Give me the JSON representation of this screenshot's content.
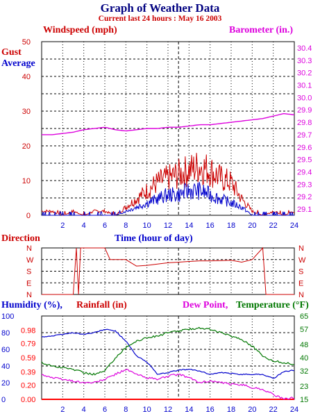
{
  "header": {
    "title": "Graph of Weather Data",
    "subtitle": "Current last 24 hours : May 16 2003"
  },
  "wind_panel": {
    "left_title": "Windspeed (mph)",
    "right_title": "Barometer (in.)",
    "legend_gust": "Gust",
    "legend_average": "Average",
    "x_title": "Time (hour of day)"
  },
  "direction_panel": {
    "title": "Direction",
    "compass": [
      "N",
      "W",
      "S",
      "E",
      "N"
    ]
  },
  "bottom_panel": {
    "humidity_label": "Humidity (%),",
    "rainfall_label": "Rainfall (in)",
    "dewpoint_label": "Dew Point,",
    "temperature_label": "Temperature (°F)"
  },
  "colors": {
    "gust": "#cc0000",
    "average": "#0000cc",
    "barometer": "#dd00dd",
    "direction": "#cc0000",
    "humidity": "#0000cc",
    "dewpoint": "#dd00dd",
    "temperature": "#007700",
    "rainfall": "#ff0000",
    "grid": "#000000"
  },
  "chart_data": [
    {
      "type": "line",
      "title": "Windspeed (mph) / Barometer (in.)",
      "x": [
        0,
        1,
        2,
        3,
        4,
        5,
        6,
        7,
        8,
        9,
        10,
        11,
        12,
        13,
        14,
        15,
        16,
        17,
        18,
        19,
        20,
        21,
        22,
        23,
        24
      ],
      "xticks": [
        2,
        4,
        6,
        8,
        10,
        12,
        14,
        16,
        18,
        20,
        22,
        24
      ],
      "xlim": [
        0,
        24
      ],
      "ylim": [
        0,
        50
      ],
      "yticks": [
        0,
        10,
        20,
        30,
        40,
        50
      ],
      "y2lim": [
        29.05,
        30.45
      ],
      "y2ticks": [
        29.1,
        29.2,
        29.3,
        29.4,
        29.5,
        29.6,
        29.7,
        29.8,
        29.9,
        30.0,
        30.1,
        30.2,
        30.3,
        30.4
      ],
      "series": [
        {
          "name": "Gust",
          "axis": "left",
          "values": [
            1,
            1,
            0,
            1,
            0,
            1,
            1,
            0,
            2,
            4,
            6,
            8,
            9,
            10,
            11,
            12,
            11,
            9,
            8,
            4,
            1,
            0,
            1,
            0,
            1
          ]
        },
        {
          "name": "Average",
          "axis": "left",
          "values": [
            0,
            0,
            0,
            0,
            0,
            0,
            0,
            0,
            1,
            2,
            3,
            4,
            5,
            5,
            6,
            6,
            5,
            4,
            3,
            2,
            0,
            0,
            0,
            0,
            0
          ]
        },
        {
          "name": "Barometer",
          "axis": "right",
          "values": [
            29.7,
            29.7,
            29.71,
            29.72,
            29.74,
            29.75,
            29.76,
            29.74,
            29.73,
            29.74,
            29.75,
            29.75,
            29.76,
            29.76,
            29.77,
            29.78,
            29.78,
            29.79,
            29.8,
            29.81,
            29.82,
            29.83,
            29.85,
            29.87,
            29.86
          ]
        }
      ]
    },
    {
      "type": "line",
      "title": "Direction",
      "x": [
        0,
        1,
        2,
        3,
        3.3,
        3.5,
        3.7,
        4,
        5,
        6,
        6.5,
        7,
        8,
        9,
        10,
        11,
        12,
        13,
        14,
        15,
        16,
        17,
        18,
        19,
        20,
        21,
        21.3,
        22,
        23,
        23.5,
        24
      ],
      "yticks": [
        "N",
        "W",
        "S",
        "E",
        "N"
      ],
      "ylim": [
        0,
        360
      ],
      "series": [
        {
          "name": "Direction",
          "values": [
            0,
            0,
            0,
            0,
            360,
            0,
            360,
            360,
            360,
            360,
            270,
            270,
            270,
            220,
            225,
            235,
            245,
            250,
            255,
            260,
            260,
            262,
            265,
            250,
            270,
            360,
            0,
            0,
            0,
            0,
            0
          ]
        }
      ]
    },
    {
      "type": "line",
      "title": "Humidity / Rainfall / Dew Point / Temperature",
      "x": [
        0,
        1,
        2,
        3,
        4,
        5,
        6,
        7,
        8,
        9,
        10,
        11,
        12,
        13,
        14,
        15,
        16,
        17,
        18,
        19,
        20,
        21,
        22,
        23,
        24
      ],
      "xticks": [
        2,
        4,
        6,
        8,
        10,
        12,
        14,
        16,
        18,
        20,
        22,
        24
      ],
      "xlim": [
        0,
        24
      ],
      "y_left_humidity": {
        "lim": [
          0,
          100
        ],
        "ticks": [
          0,
          20,
          40,
          60,
          80,
          100
        ]
      },
      "y_left_rainfall": {
        "lim": [
          0,
          1.18
        ],
        "ticks": [
          0.0,
          0.2,
          0.39,
          0.59,
          0.79,
          0.98
        ]
      },
      "y_right_temperature": {
        "lim": [
          15,
          65
        ],
        "ticks": [
          15,
          23,
          32,
          40,
          48,
          57,
          65
        ]
      },
      "series": [
        {
          "name": "Humidity (%)",
          "axis": "humidity",
          "values": [
            75,
            76,
            78,
            80,
            78,
            80,
            84,
            82,
            70,
            52,
            45,
            30,
            32,
            35,
            36,
            34,
            30,
            32,
            31,
            30,
            30,
            30,
            25,
            33,
            35
          ]
        },
        {
          "name": "Rainfall (in)",
          "axis": "rainfall",
          "values": [
            0,
            0,
            0,
            0,
            0,
            0,
            0,
            0,
            0,
            0,
            0,
            0,
            0,
            0,
            0,
            0,
            0,
            0,
            0,
            0,
            0,
            0,
            0,
            0,
            0
          ]
        },
        {
          "name": "Dew Point",
          "axis": "temperature",
          "values": [
            30,
            28,
            27,
            26,
            25,
            25,
            27,
            30,
            33,
            30,
            28,
            27,
            29,
            30,
            28,
            25,
            26,
            25,
            24,
            24,
            22,
            21,
            18,
            15,
            16
          ]
        },
        {
          "name": "Temperature (°F)",
          "axis": "temperature",
          "values": [
            37,
            35,
            34,
            33,
            31,
            30,
            32,
            40,
            46,
            50,
            52,
            53,
            55,
            56,
            57,
            58,
            57,
            55,
            53,
            51,
            47,
            41,
            38,
            37,
            36
          ]
        }
      ]
    }
  ]
}
